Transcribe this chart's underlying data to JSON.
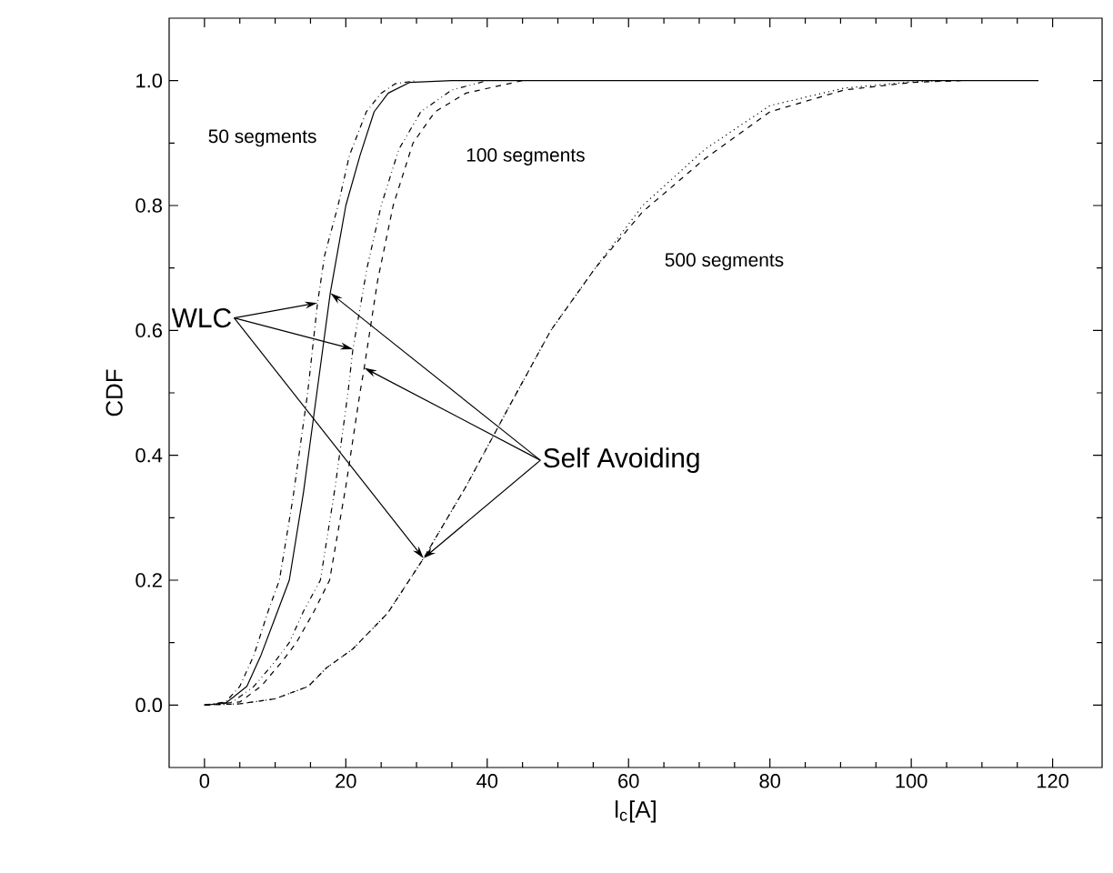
{
  "chart_data": {
    "type": "line",
    "xlabel": "l$_{c}$[A]",
    "ylabel": "CDF",
    "xlim": [
      -5,
      127
    ],
    "ylim": [
      -0.1,
      1.1
    ],
    "xticks": [
      0,
      20,
      40,
      60,
      80,
      100,
      120
    ],
    "yticks": [
      {
        "value": 0,
        "label": "0.0"
      },
      {
        "value": 0.2,
        "label": "0.2"
      },
      {
        "value": 0.4,
        "label": "0.4"
      },
      {
        "value": 0.6,
        "label": "0.6"
      },
      {
        "value": 0.8,
        "label": "0.8"
      },
      {
        "value": 1,
        "label": "1.0"
      }
    ],
    "series": [
      {
        "color": "#000000",
        "line_style": "dashdot",
        "x": [
          0,
          3,
          5,
          7,
          9,
          10.6,
          12.5,
          14.6,
          16,
          17,
          18.9,
          20.5,
          22.9,
          25,
          27,
          30
        ],
        "values": [
          0,
          0.005,
          0.03,
          0.08,
          0.15,
          0.2,
          0.33,
          0.5,
          0.644,
          0.72,
          0.8,
          0.88,
          0.95,
          0.98,
          0.995,
          1
        ]
      },
      {
        "color": "#000000",
        "line_style": "solid",
        "x": [
          0,
          3,
          6,
          8,
          10,
          12,
          14,
          15.9,
          17.8,
          20,
          22,
          24,
          26,
          29,
          35,
          118
        ],
        "values": [
          0,
          0.003,
          0.03,
          0.08,
          0.14,
          0.2,
          0.34,
          0.5,
          0.66,
          0.8,
          0.88,
          0.95,
          0.98,
          0.997,
          1,
          1
        ]
      },
      {
        "color": "#000000",
        "line_style": "dashdotdot",
        "x": [
          0,
          4,
          7,
          10,
          12,
          14,
          16.4,
          18.5,
          20.3,
          21,
          23,
          25,
          27.5,
          30.6,
          35,
          40
        ],
        "values": [
          0,
          0.005,
          0.03,
          0.07,
          0.1,
          0.15,
          0.2,
          0.35,
          0.5,
          0.57,
          0.7,
          0.8,
          0.89,
          0.95,
          0.985,
          1
        ]
      },
      {
        "color": "#000000",
        "line_style": "dashed",
        "x": [
          0,
          5,
          8,
          11,
          13,
          15.5,
          17.7,
          20,
          22,
          22.6,
          24.5,
          26.7,
          29.5,
          32.6,
          37,
          45
        ],
        "values": [
          0,
          0.005,
          0.03,
          0.07,
          0.1,
          0.15,
          0.2,
          0.35,
          0.5,
          0.54,
          0.68,
          0.8,
          0.9,
          0.95,
          0.98,
          1
        ]
      },
      {
        "color": "#000000",
        "line_style": "dotted",
        "x": [
          0,
          5,
          10,
          14.7,
          17.3,
          21,
          25.9,
          31,
          37,
          43.2,
          49,
          55.3,
          62,
          70.8,
          80,
          90.5,
          100,
          105
        ],
        "values": [
          0,
          0.002,
          0.01,
          0.03,
          0.06,
          0.09,
          0.147,
          0.235,
          0.35,
          0.48,
          0.6,
          0.7,
          0.8,
          0.89,
          0.96,
          0.988,
          0.998,
          1
        ]
      },
      {
        "color": "#000000",
        "line_style": "dashed",
        "x": [
          0,
          5,
          10,
          14.7,
          17.3,
          21,
          25.9,
          31,
          37,
          43.2,
          49,
          55.3,
          62,
          70.8,
          80,
          90.5,
          100,
          107
        ],
        "values": [
          0,
          0.002,
          0.01,
          0.03,
          0.06,
          0.09,
          0.147,
          0.235,
          0.35,
          0.48,
          0.6,
          0.7,
          0.79,
          0.875,
          0.95,
          0.985,
          0.997,
          1
        ]
      }
    ],
    "annotations": [
      "50 segments",
      "100 segments",
      "500 segments",
      {
        "text": "WLC",
        "x": 16,
        "y": 0.644
      },
      {
        "text": "Self Avoiding",
        "x": 17.8,
        "y": 0.66
      }
    ],
    "marker": "none"
  }
}
